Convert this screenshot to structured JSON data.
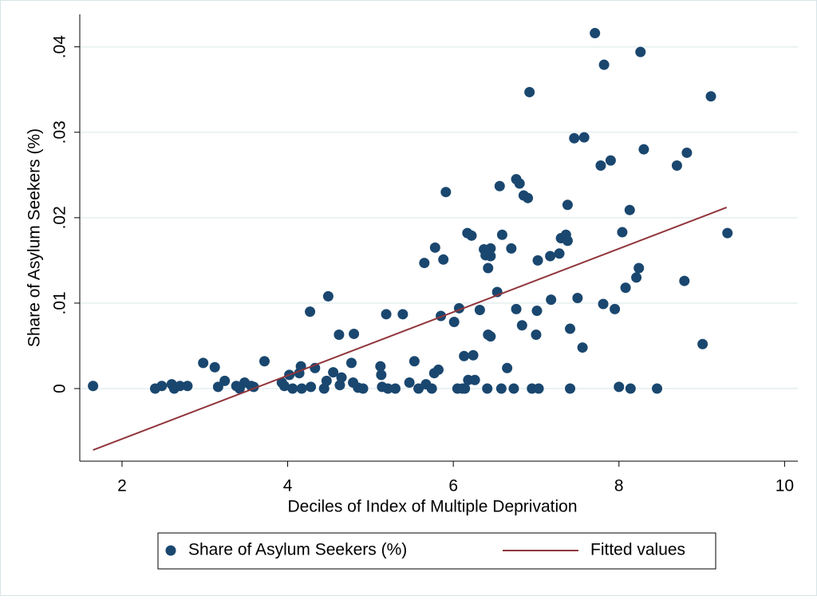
{
  "chart_data": {
    "type": "scatter",
    "xlabel": "Deciles of Index of Multiple Deprivation",
    "ylabel": "Share of Asylum Seekers (%)",
    "xlim": [
      1.49,
      10.16
    ],
    "ylim": [
      -0.0085,
      0.0438
    ],
    "xticks": [
      2,
      4,
      6,
      8,
      10
    ],
    "yticks": [
      0,
      {
        "value": 0.01,
        "label": ".01"
      },
      {
        "value": 0.02,
        "label": ".02"
      },
      {
        "value": 0.03,
        "label": ".03"
      },
      {
        "value": 0.04,
        "label": ".04"
      }
    ],
    "grid": true,
    "legend": "bottom",
    "series": [
      {
        "name": "Share of Asylum Seekers (%)",
        "type": "scatter",
        "color": "#1a476f",
        "x": [
          1.65,
          2.4,
          2.48,
          2.6,
          2.63,
          2.7,
          2.79,
          2.98,
          3.12,
          3.16,
          3.24,
          3.38,
          3.42,
          3.48,
          3.56,
          3.59,
          3.72,
          3.93,
          3.96,
          4.02,
          4.06,
          4.14,
          4.16,
          4.17,
          4.27,
          4.28,
          4.33,
          4.44,
          4.47,
          4.49,
          4.55,
          4.62,
          4.63,
          4.65,
          4.77,
          4.79,
          4.8,
          4.85,
          4.91,
          5.12,
          5.13,
          5.14,
          5.19,
          5.21,
          5.3,
          5.39,
          5.47,
          5.53,
          5.58,
          5.65,
          5.67,
          5.74,
          5.77,
          5.78,
          5.82,
          5.85,
          5.88,
          5.91,
          6.01,
          6.05,
          6.07,
          6.11,
          6.13,
          6.14,
          6.17,
          6.18,
          6.22,
          6.24,
          6.26,
          6.32,
          6.37,
          6.39,
          6.41,
          6.42,
          6.42,
          6.45,
          6.45,
          6.45,
          6.53,
          6.56,
          6.58,
          6.59,
          6.65,
          6.7,
          6.73,
          6.76,
          6.76,
          6.8,
          6.83,
          6.85,
          6.9,
          6.92,
          6.95,
          7.0,
          7.01,
          7.02,
          7.03,
          7.17,
          7.18,
          7.28,
          7.3,
          7.36,
          7.38,
          7.38,
          7.41,
          7.41,
          7.46,
          7.5,
          7.56,
          7.58,
          7.71,
          7.78,
          7.81,
          7.82,
          7.9,
          7.95,
          8.0,
          8.04,
          8.08,
          8.13,
          8.14,
          8.21,
          8.24,
          8.26,
          8.3,
          8.46,
          8.7,
          8.79,
          8.82,
          9.01,
          9.11,
          9.31
        ],
        "values": [
          0.0003,
          0,
          0.0003,
          0.0005,
          0,
          0.0003,
          0.0003,
          0.003,
          0.0025,
          0.0002,
          0.0009,
          0.0003,
          0,
          0.0007,
          0.0003,
          0.0002,
          0.0032,
          0.0007,
          0.0003,
          0.0016,
          0,
          0.0018,
          0.0026,
          0,
          0.009,
          0.0002,
          0.0024,
          0,
          0.0009,
          0.0108,
          0.0019,
          0.0063,
          0.0004,
          0.0013,
          0.003,
          0.0007,
          0.0064,
          0.0001,
          0,
          0.0026,
          0.0016,
          0.0002,
          0.0087,
          0,
          0,
          0.0087,
          0.0007,
          0.0032,
          0,
          0.0147,
          0.0005,
          0,
          0.0018,
          0.0165,
          0.0022,
          0.0085,
          0.0151,
          0.023,
          0.0078,
          0,
          0.0094,
          0,
          0.0038,
          0,
          0.0182,
          0.001,
          0.0179,
          0.0039,
          0.001,
          0.0092,
          0.0163,
          0.0156,
          0,
          0.0141,
          0.0063,
          0.0061,
          0.0164,
          0.0155,
          0.0113,
          0.0237,
          0,
          0.018,
          0.0024,
          0.0164,
          0,
          0.0093,
          0.0245,
          0.024,
          0.0074,
          0.0226,
          0.0223,
          0.0347,
          0,
          0.0063,
          0.0091,
          0.015,
          0,
          0.0155,
          0.0104,
          0.0158,
          0.0176,
          0.018,
          0.0215,
          0.0173,
          0.007,
          0,
          0.0293,
          0.0106,
          0.0048,
          0.0294,
          0.0416,
          0.0261,
          0.0099,
          0.0379,
          0.0267,
          0.0093,
          0.0002,
          0.0183,
          0.0118,
          0.0209,
          0,
          0.013,
          0.0141,
          0.0394,
          0.028,
          0,
          0.0261,
          0.0126,
          0.0276,
          0.0052,
          0.0342,
          0.0182
        ]
      },
      {
        "name": "Fitted values",
        "type": "line",
        "color": "#90353b",
        "x": [
          1.65,
          9.3
        ],
        "values": [
          -0.0072,
          0.0212
        ]
      }
    ]
  }
}
